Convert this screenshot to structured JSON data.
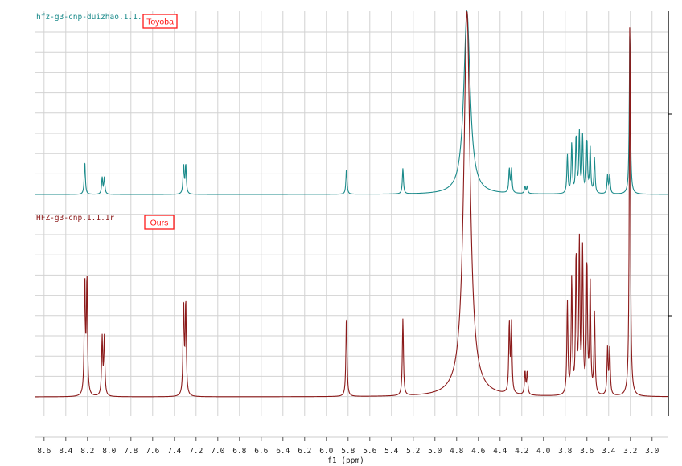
{
  "chart_data": {
    "type": "line",
    "title": "",
    "xlabel": "f1 (ppm)",
    "ylabel": "",
    "x_reversed": true,
    "xlim": [
      8.68,
      2.85
    ],
    "grid": true,
    "x_ticks": [
      8.6,
      8.4,
      8.2,
      8.0,
      7.8,
      7.6,
      7.4,
      7.2,
      7.0,
      6.8,
      6.6,
      6.4,
      6.2,
      6.0,
      5.8,
      5.6,
      5.4,
      5.2,
      5.0,
      4.8,
      4.6,
      4.4,
      4.2,
      4.0,
      3.8,
      3.6,
      3.4,
      3.2,
      3.0
    ],
    "x_tick_labels": [
      "8.6",
      "8.4",
      "8.2",
      "8.0",
      "7.8",
      "7.6",
      "7.4",
      "7.2",
      "7.0",
      "6.8",
      "6.6",
      "6.4",
      "6.2",
      "6.0",
      "5.8",
      "5.6",
      "5.4",
      "5.2",
      "5.0",
      "4.8",
      "4.6",
      "4.4",
      "4.2",
      "4.0",
      "3.8",
      "3.6",
      "3.4",
      "3.2",
      "3.0"
    ],
    "series": [
      {
        "name": "hfz-g3-cnp-duizhao.1.1.1r",
        "annotation": "Toyoba",
        "color": "#1a8a8a",
        "peaks": [
          {
            "ppm": 8.225,
            "height": 0.18
          },
          {
            "ppm": 8.065,
            "height": 0.09
          },
          {
            "ppm": 8.045,
            "height": 0.09
          },
          {
            "ppm": 7.315,
            "height": 0.16
          },
          {
            "ppm": 7.295,
            "height": 0.16
          },
          {
            "ppm": 5.815,
            "height": 0.14
          },
          {
            "ppm": 5.295,
            "height": 0.14
          },
          {
            "ppm": 4.705,
            "height": 1.0
          },
          {
            "ppm": 4.315,
            "height": 0.13
          },
          {
            "ppm": 4.295,
            "height": 0.13
          },
          {
            "ppm": 4.17,
            "height": 0.04
          },
          {
            "ppm": 4.15,
            "height": 0.04
          },
          {
            "ppm": 3.78,
            "height": 0.21
          },
          {
            "ppm": 3.74,
            "height": 0.27
          },
          {
            "ppm": 3.7,
            "height": 0.31
          },
          {
            "ppm": 3.67,
            "height": 0.33
          },
          {
            "ppm": 3.64,
            "height": 0.31
          },
          {
            "ppm": 3.6,
            "height": 0.29
          },
          {
            "ppm": 3.57,
            "height": 0.25
          },
          {
            "ppm": 3.53,
            "height": 0.19
          },
          {
            "ppm": 3.41,
            "height": 0.1
          },
          {
            "ppm": 3.39,
            "height": 0.1
          },
          {
            "ppm": 3.205,
            "height": 0.9
          }
        ]
      },
      {
        "name": "HFZ-g3-cnp.1.1.1r",
        "annotation": "Ours",
        "color": "#8b1a1a",
        "peaks": [
          {
            "ppm": 8.225,
            "height": 0.3
          },
          {
            "ppm": 8.205,
            "height": 0.3
          },
          {
            "ppm": 8.065,
            "height": 0.15
          },
          {
            "ppm": 8.045,
            "height": 0.15
          },
          {
            "ppm": 7.315,
            "height": 0.24
          },
          {
            "ppm": 7.295,
            "height": 0.24
          },
          {
            "ppm": 5.815,
            "height": 0.21
          },
          {
            "ppm": 5.295,
            "height": 0.2
          },
          {
            "ppm": 4.705,
            "height": 1.0
          },
          {
            "ppm": 4.315,
            "height": 0.18
          },
          {
            "ppm": 4.295,
            "height": 0.18
          },
          {
            "ppm": 4.17,
            "height": 0.06
          },
          {
            "ppm": 4.15,
            "height": 0.06
          },
          {
            "ppm": 3.78,
            "height": 0.24
          },
          {
            "ppm": 3.74,
            "height": 0.3
          },
          {
            "ppm": 3.7,
            "height": 0.36
          },
          {
            "ppm": 3.67,
            "height": 0.39
          },
          {
            "ppm": 3.64,
            "height": 0.37
          },
          {
            "ppm": 3.6,
            "height": 0.34
          },
          {
            "ppm": 3.57,
            "height": 0.29
          },
          {
            "ppm": 3.53,
            "height": 0.21
          },
          {
            "ppm": 3.41,
            "height": 0.12
          },
          {
            "ppm": 3.39,
            "height": 0.12
          },
          {
            "ppm": 3.205,
            "height": 1.0
          }
        ]
      }
    ]
  }
}
